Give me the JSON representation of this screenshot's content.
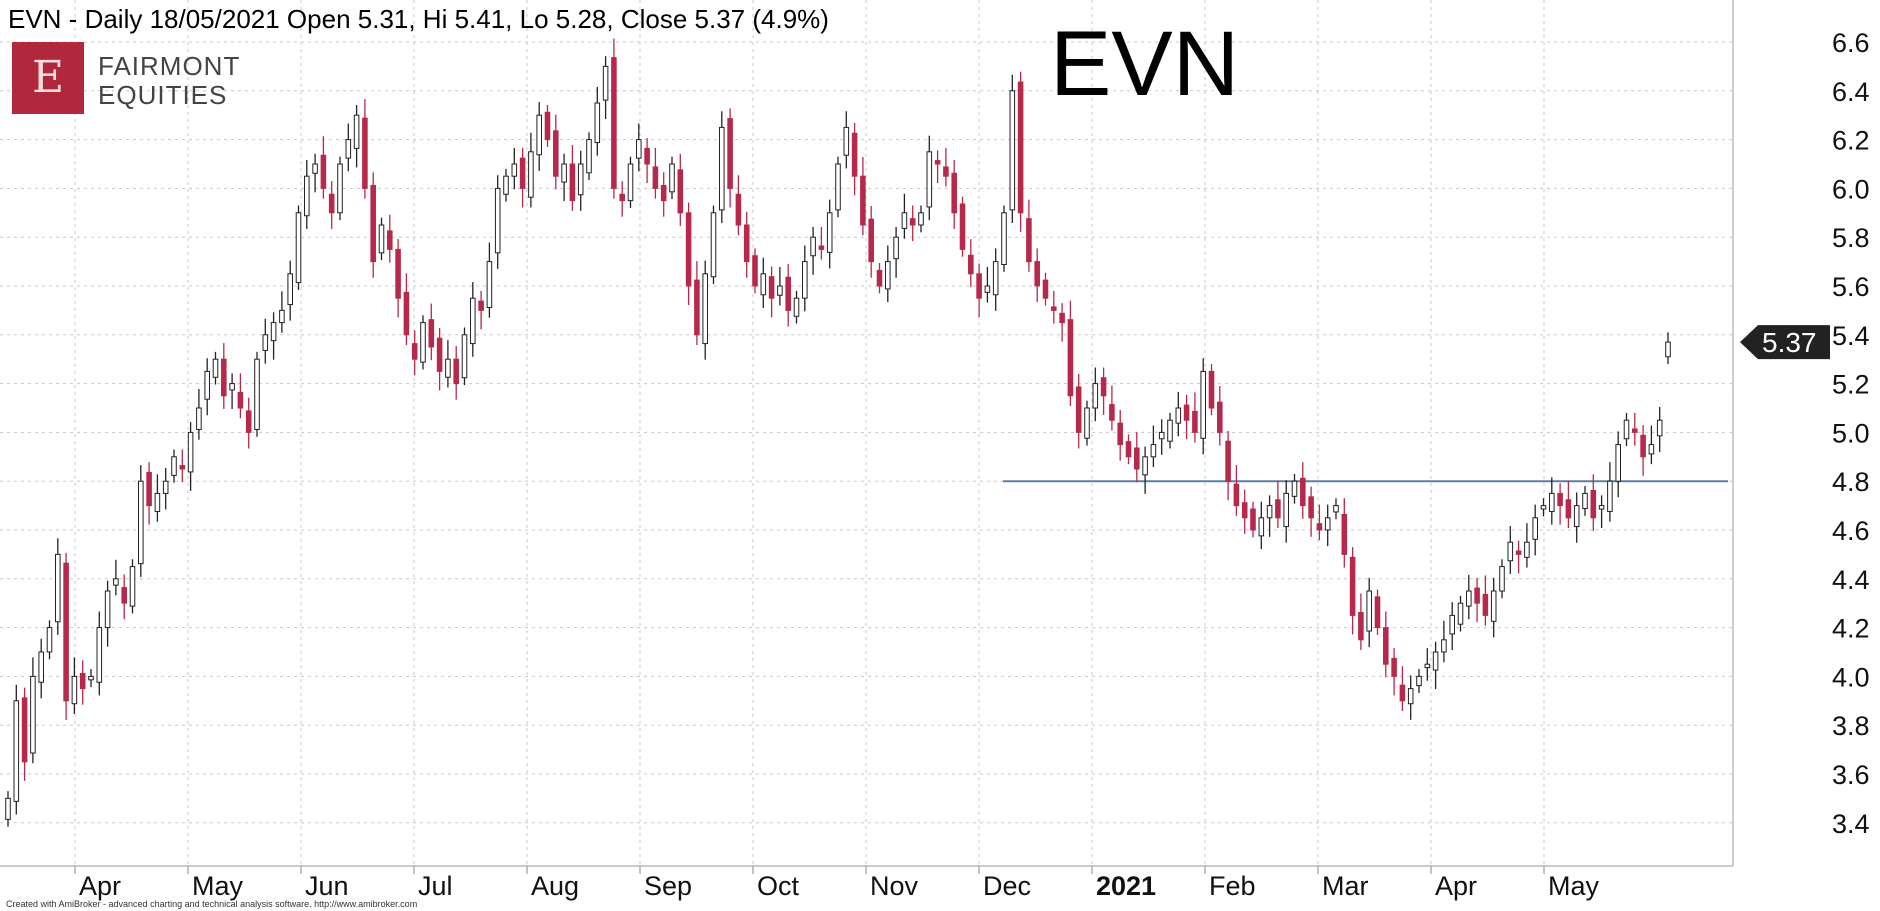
{
  "header": {
    "title": "EVN - Daily 18/05/2021 Open 5.31, Hi 5.41, Lo 5.28, Close 5.37 (4.9%)"
  },
  "logo": {
    "letter": "E",
    "line1": "FAIRMONT",
    "line2": "EQUITIES"
  },
  "ticker": "EVN",
  "footer": "Created with AmiBroker - advanced charting and technical analysis software. http://www.amibroker.com",
  "colors": {
    "up": "#ffffff",
    "down": "#b7294a",
    "support_line": "#5b7fa6",
    "badge": "#222222"
  },
  "chart_data": {
    "type": "candlestick",
    "title": "EVN",
    "ylim": [
      3.25,
      6.65
    ],
    "y_ticks": [
      "3.4",
      "3.6",
      "3.8",
      "4.0",
      "4.2",
      "4.4",
      "4.6",
      "4.8",
      "5.0",
      "5.2",
      "5.4",
      "5.6",
      "5.8",
      "6.0",
      "6.2",
      "6.4",
      "6.6"
    ],
    "x_labels": [
      {
        "label": "Apr",
        "month": 0
      },
      {
        "label": "May",
        "month": 1
      },
      {
        "label": "Jun",
        "month": 2
      },
      {
        "label": "Jul",
        "month": 3
      },
      {
        "label": "Aug",
        "month": 4
      },
      {
        "label": "Sep",
        "month": 5
      },
      {
        "label": "Oct",
        "month": 6
      },
      {
        "label": "Nov",
        "month": 7
      },
      {
        "label": "Dec",
        "month": 8
      },
      {
        "label": "2021",
        "month": 9,
        "bold": true
      },
      {
        "label": "Feb",
        "month": 10
      },
      {
        "label": "Mar",
        "month": 11
      },
      {
        "label": "Apr",
        "month": 12
      },
      {
        "label": "May",
        "month": 13
      }
    ],
    "grid": true,
    "last_close": 5.37,
    "last_close_label": "5.37",
    "support_level": 4.8,
    "closes": [
      3.5,
      3.9,
      3.65,
      4.0,
      4.1,
      4.2,
      4.5,
      3.9,
      4.0,
      3.95,
      4.0,
      4.2,
      4.35,
      4.4,
      4.3,
      4.45,
      4.8,
      4.7,
      4.75,
      4.8,
      4.9,
      4.85,
      5.0,
      5.1,
      5.25,
      5.3,
      5.15,
      5.2,
      5.1,
      5.0,
      5.3,
      5.4,
      5.45,
      5.5,
      5.65,
      5.9,
      6.05,
      6.1,
      6.0,
      5.9,
      6.1,
      6.2,
      6.3,
      6.0,
      5.7,
      5.85,
      5.75,
      5.55,
      5.4,
      5.3,
      5.45,
      5.35,
      5.25,
      5.3,
      5.2,
      5.4,
      5.55,
      5.5,
      5.7,
      6.0,
      6.05,
      6.1,
      6.0,
      6.15,
      6.3,
      6.2,
      6.05,
      6.1,
      5.95,
      6.1,
      6.2,
      6.35,
      6.5,
      6.0,
      5.95,
      6.1,
      6.2,
      6.1,
      6.0,
      5.95,
      6.1,
      5.9,
      5.6,
      5.4,
      5.65,
      5.9,
      6.25,
      6.0,
      5.85,
      5.7,
      5.6,
      5.65,
      5.55,
      5.6,
      5.5,
      5.55,
      5.7,
      5.8,
      5.75,
      5.9,
      6.1,
      6.25,
      6.05,
      5.85,
      5.7,
      5.6,
      5.7,
      5.8,
      5.9,
      5.85,
      5.9,
      6.15,
      6.1,
      6.05,
      5.9,
      5.75,
      5.65,
      5.55,
      5.6,
      5.7,
      5.9,
      6.4,
      5.9,
      5.7,
      5.6,
      5.55,
      5.5,
      5.45,
      5.15,
      5.0,
      5.1,
      5.2,
      5.15,
      5.05,
      4.95,
      4.9,
      4.85,
      4.9,
      4.95,
      5.0,
      5.05,
      5.1,
      5.05,
      5.0,
      5.25,
      5.1,
      5.0,
      4.8,
      4.7,
      4.65,
      4.6,
      4.65,
      4.7,
      4.65,
      4.75,
      4.8,
      4.7,
      4.65,
      4.6,
      4.65,
      4.7,
      4.5,
      4.25,
      4.15,
      4.35,
      4.2,
      4.05,
      4.0,
      3.9,
      3.95,
      4.0,
      4.05,
      4.1,
      4.15,
      4.25,
      4.3,
      4.35,
      4.3,
      4.25,
      4.35,
      4.45,
      4.55,
      4.5,
      4.55,
      4.65,
      4.7,
      4.75,
      4.7,
      4.65,
      4.7,
      4.75,
      4.65,
      4.7,
      4.8,
      4.95,
      5.05,
      5.0,
      4.9,
      4.95,
      5.05,
      5.37
    ]
  }
}
